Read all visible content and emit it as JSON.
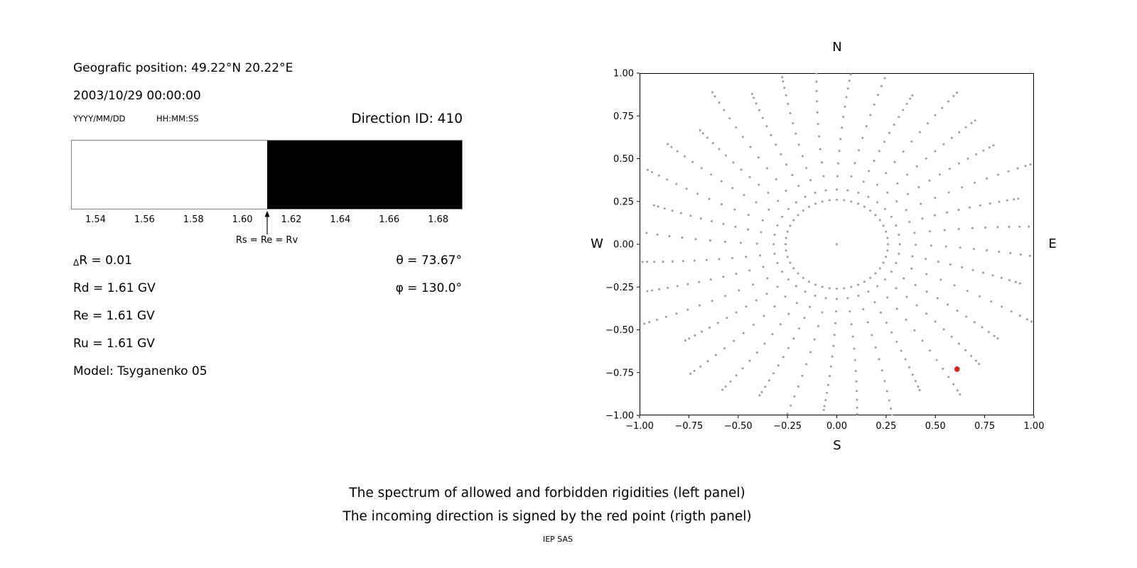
{
  "left_panel": {
    "geo_position": "Geografic position: 49.22°N 20.22°E",
    "datetime": "2003/10/29 00:00:00",
    "date_format_label": "YYYY/MM/DD",
    "time_format_label": "HH:MM:SS",
    "direction_id": "Direction ID: 410",
    "params": {
      "delta_symbol": "Δ",
      "delta_rest": "R = 0.01",
      "rd": "Rd = 1.61 GV",
      "re": "Re = 1.61 GV",
      "ru": "Ru = 1.61 GV",
      "model": "Model: Tsyganenko 05",
      "theta": "θ = 73.67°",
      "phi": "φ = 130.0°"
    }
  },
  "captions": {
    "line1": "The spectrum of allowed and forbidden rigidities (left panel)",
    "line2": "The incoming direction is signed by the red point (rigth panel)",
    "credit": "IEP SAS"
  },
  "colors": {
    "allowed": "#ffffff",
    "forbidden": "#000000",
    "dot_gray": "#9a9a9a",
    "red_point": "#e02020"
  },
  "chart_data": [
    {
      "id": "rigidity-spectrum",
      "type": "area",
      "x_range": [
        1.53,
        1.69
      ],
      "boundary": 1.61,
      "regions": [
        {
          "name": "allowed",
          "from": 1.53,
          "to": 1.61,
          "color": "#ffffff"
        },
        {
          "name": "forbidden",
          "from": 1.61,
          "to": 1.69,
          "color": "#000000"
        }
      ],
      "ticks": [
        {
          "v": 1.54,
          "label": "1.54"
        },
        {
          "v": 1.56,
          "label": "1.56"
        },
        {
          "v": 1.58,
          "label": "1.58"
        },
        {
          "v": 1.6,
          "label": "1.60"
        },
        {
          "v": 1.62,
          "label": "1.62"
        },
        {
          "v": 1.64,
          "label": "1.64"
        },
        {
          "v": 1.66,
          "label": "1.66"
        },
        {
          "v": 1.68,
          "label": "1.68"
        }
      ],
      "marker": {
        "x": 1.61,
        "label": "Rs = Re = Rv"
      }
    },
    {
      "id": "asymptotic-direction-map",
      "type": "scatter",
      "xlim": [
        -1.0,
        1.0
      ],
      "ylim": [
        -1.0,
        1.0
      ],
      "xticks": [
        {
          "v": -1.0,
          "label": "−1.00"
        },
        {
          "v": -0.75,
          "label": "−0.75"
        },
        {
          "v": -0.5,
          "label": "−0.50"
        },
        {
          "v": -0.25,
          "label": "−0.25"
        },
        {
          "v": 0.0,
          "label": "0.00"
        },
        {
          "v": 0.25,
          "label": "0.25"
        },
        {
          "v": 0.5,
          "label": "0.50"
        },
        {
          "v": 0.75,
          "label": "0.75"
        },
        {
          "v": 1.0,
          "label": "1.00"
        }
      ],
      "yticks": [
        {
          "v": 1.0,
          "label": "1.00"
        },
        {
          "v": 0.75,
          "label": "0.75"
        },
        {
          "v": 0.5,
          "label": "0.50"
        },
        {
          "v": 0.25,
          "label": "0.25"
        },
        {
          "v": 0.0,
          "label": "0.00"
        },
        {
          "v": -0.25,
          "label": "−0.25"
        },
        {
          "v": -0.5,
          "label": "−0.50"
        },
        {
          "v": -0.75,
          "label": "−0.75"
        },
        {
          "v": -1.0,
          "label": "−1.00"
        }
      ],
      "compass": {
        "north": "N",
        "south": "S",
        "east": "E",
        "west": "W"
      },
      "spokes": {
        "count": 36,
        "r_start": 0.32,
        "r_end": 1.02,
        "dots_per_spoke": 13,
        "curvature_deg": 6,
        "end_variation": 0.07,
        "color": "#9a9a9a",
        "dot_radius": 1.5
      },
      "inner_ring": {
        "radius": 0.26,
        "count": 44,
        "color": "#9a9a9a",
        "dot_radius": 1.5
      },
      "red_point": {
        "x": 0.61,
        "y": -0.73,
        "color": "#e02020",
        "radius": 3.8
      }
    }
  ]
}
